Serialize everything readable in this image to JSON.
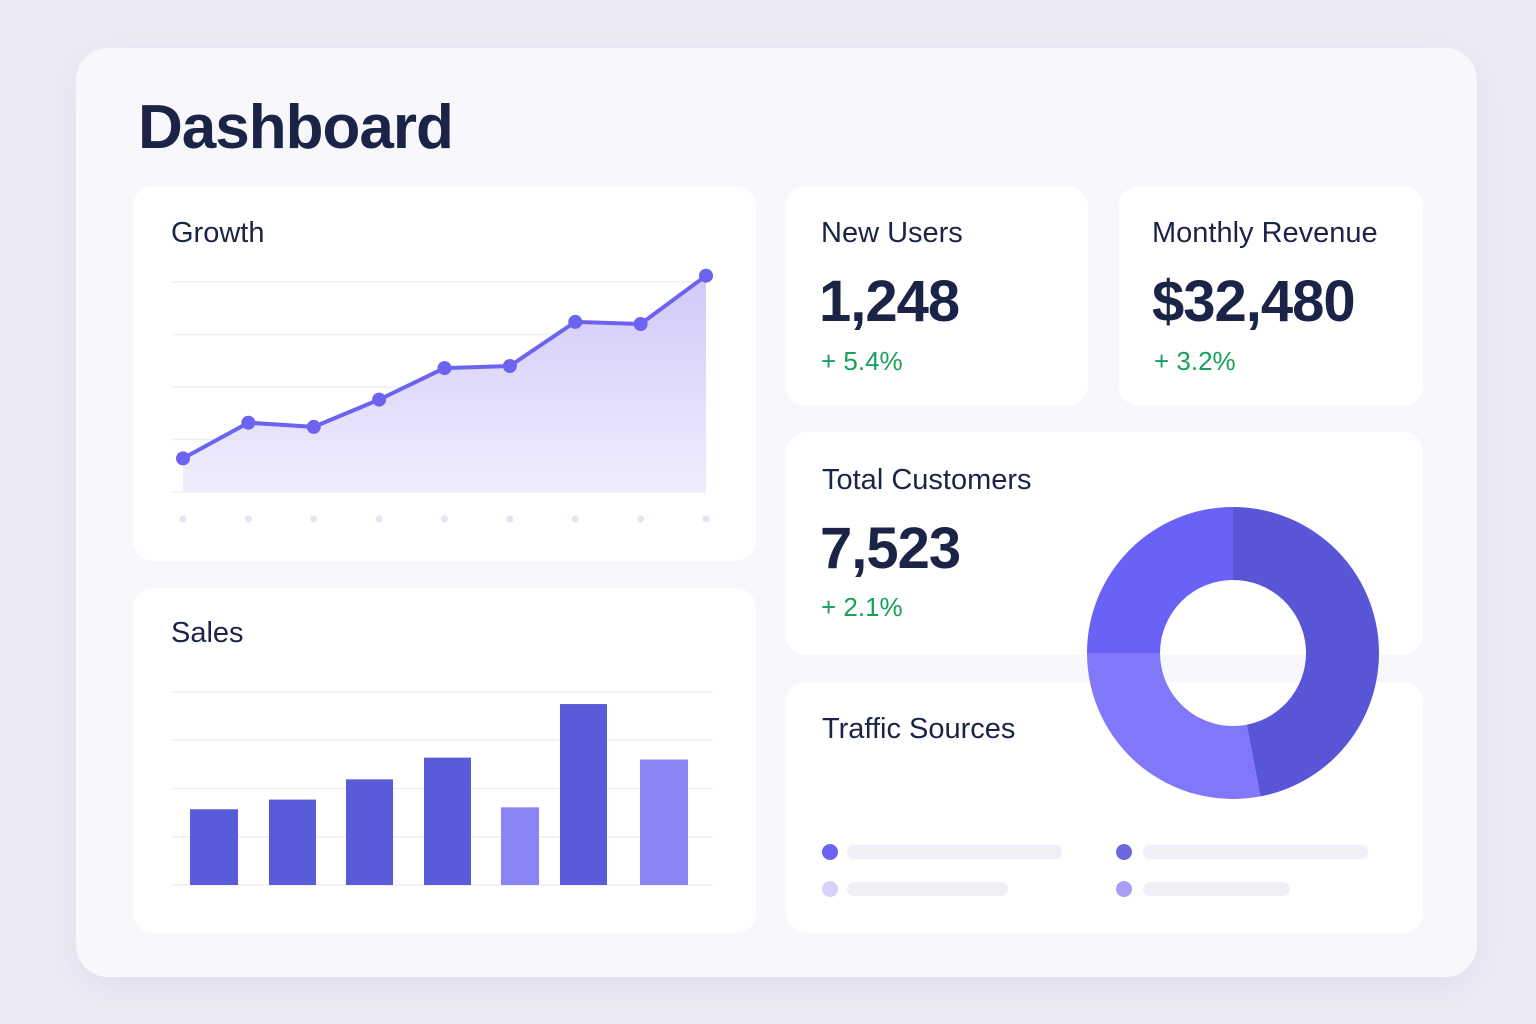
{
  "header": {
    "title": "Dashboard"
  },
  "growth": {
    "title": "Growth"
  },
  "sales": {
    "title": "Sales"
  },
  "new_users": {
    "title": "New Users",
    "value": "1,248",
    "delta": "+ 5.4%"
  },
  "revenue": {
    "title": "Monthly Revenue",
    "value": "$32,480",
    "delta": "+ 3.2%"
  },
  "customers": {
    "title": "Total Customers",
    "value": "7,523",
    "delta": "+ 2.1%"
  },
  "traffic": {
    "title": "Traffic Sources",
    "legend_colors": [
      "#6c63f0",
      "#d6d2fb",
      "#6f66e0",
      "#a79ff5"
    ]
  },
  "colors": {
    "accent": "#6c63f0",
    "positive": "#16a05a",
    "bar_dark": "#5a5bd8",
    "bar_light": "#8b85f7"
  },
  "chart_data": [
    {
      "type": "area",
      "title": "Growth",
      "values": [
        16,
        33,
        31,
        44,
        59,
        60,
        81,
        80,
        103
      ],
      "ylim": [
        0,
        100
      ],
      "grid": true
    },
    {
      "type": "bar",
      "title": "Sales",
      "values": [
        1.57,
        1.77,
        2.19,
        2.64,
        1.61,
        3.75,
        2.6
      ],
      "highlight": [
        false,
        false,
        false,
        false,
        true,
        false,
        true
      ],
      "ylim": [
        0,
        4
      ],
      "grid": true
    },
    {
      "type": "pie",
      "title": "Traffic Sources",
      "donut": true,
      "values": [
        47,
        28,
        25
      ],
      "colors": [
        "#5856d6",
        "#8178f9",
        "#6a62f7"
      ]
    }
  ]
}
